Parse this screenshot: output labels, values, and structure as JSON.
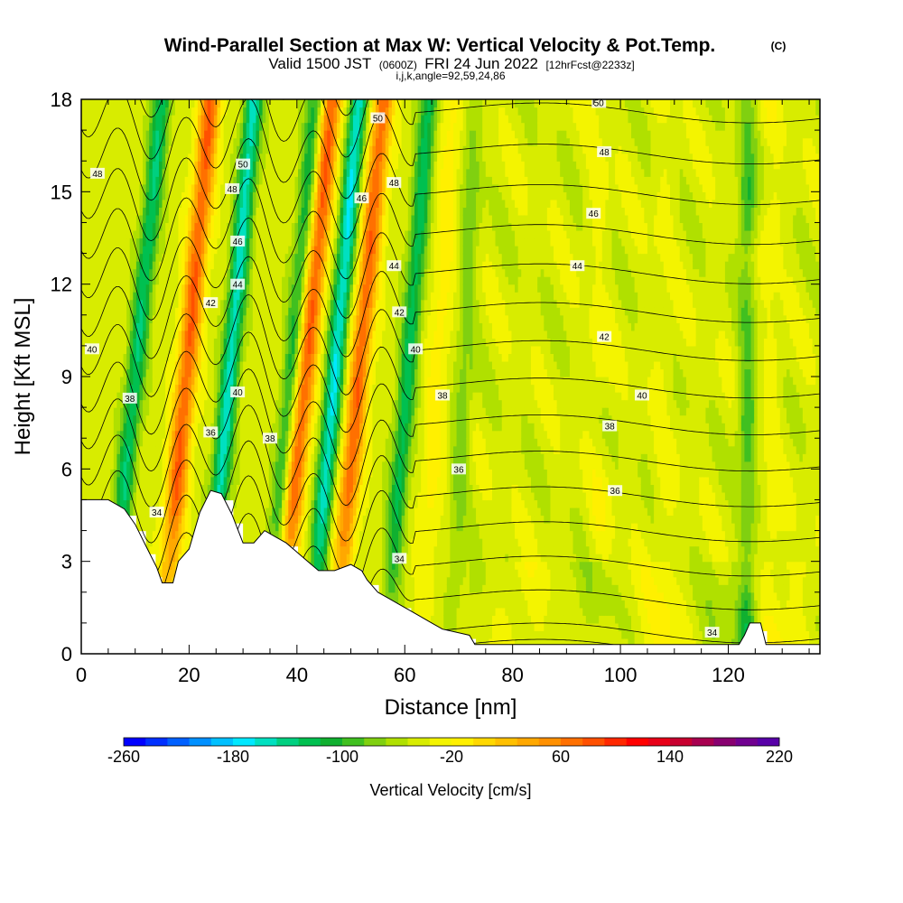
{
  "header": {
    "title_main": "Wind-Parallel Section at Max W: Vertical Velocity & Pot.Temp.",
    "title_tag": "(C)",
    "valid_prefix": "Valid 1500 JST",
    "valid_utc": "(0600Z)",
    "valid_date": "FRI 24 Jun 2022",
    "forecast": "[12hrFcst@2233z]",
    "params": "i,j,k,angle=92,59,24,86"
  },
  "chart_data": {
    "type": "heatmap",
    "xlabel": "Distance [nm]",
    "ylabel": "Height [Kft MSL]",
    "xlim": [
      0,
      137
    ],
    "ylim": [
      0,
      18
    ],
    "x_ticks": [
      "0",
      "20",
      "40",
      "60",
      "80",
      "100",
      "120"
    ],
    "y_ticks": [
      "0",
      "3",
      "6",
      "9",
      "12",
      "15",
      "18"
    ],
    "x_tick_values": [
      0,
      20,
      40,
      60,
      80,
      100,
      120
    ],
    "y_tick_values": [
      0,
      3,
      6,
      9,
      12,
      15,
      18
    ],
    "terrain": [
      [
        0,
        5.0
      ],
      [
        5,
        5.0
      ],
      [
        8,
        4.7
      ],
      [
        10,
        4.2
      ],
      [
        12,
        3.5
      ],
      [
        14,
        2.8
      ],
      [
        15,
        2.3
      ],
      [
        17,
        2.3
      ],
      [
        18,
        3.0
      ],
      [
        20,
        3.4
      ],
      [
        22,
        4.6
      ],
      [
        24,
        5.3
      ],
      [
        26,
        5.2
      ],
      [
        28,
        4.5
      ],
      [
        30,
        3.6
      ],
      [
        32,
        3.6
      ],
      [
        34,
        4.0
      ],
      [
        36,
        3.8
      ],
      [
        38,
        3.6
      ],
      [
        40,
        3.3
      ],
      [
        42,
        3.0
      ],
      [
        44,
        2.7
      ],
      [
        47,
        2.7
      ],
      [
        50,
        2.9
      ],
      [
        52,
        2.7
      ],
      [
        53,
        2.4
      ],
      [
        55,
        2.0
      ],
      [
        57,
        1.8
      ],
      [
        59,
        1.6
      ],
      [
        61,
        1.4
      ],
      [
        63,
        1.2
      ],
      [
        65,
        1.0
      ],
      [
        67,
        0.8
      ],
      [
        72,
        0.6
      ],
      [
        73,
        0.3
      ],
      [
        122,
        0.3
      ],
      [
        123,
        0.6
      ],
      [
        124,
        1.0
      ],
      [
        126,
        1.0
      ],
      [
        127,
        0.3
      ],
      [
        137,
        0.3
      ]
    ],
    "updrafts": [
      {
        "center": 19.5,
        "tilt": 4.5,
        "value": 150
      },
      {
        "center": 41.5,
        "tilt": 5.0,
        "value": 155
      },
      {
        "center": 51.5,
        "tilt": 4.5,
        "value": 145
      },
      {
        "center": 66.0,
        "tilt": 3.0,
        "value": 40
      },
      {
        "center": 96.0,
        "tilt": 0.0,
        "value": 25
      },
      {
        "center": 108.0,
        "tilt": 0.0,
        "value": 20
      },
      {
        "center": 128.0,
        "tilt": 0.0,
        "value": 30
      }
    ],
    "downdrafts": [
      {
        "center": 10.0,
        "tilt": 5.0,
        "value": -110
      },
      {
        "center": 27.5,
        "tilt": 4.5,
        "value": -140
      },
      {
        "center": 39.0,
        "tilt": 4.5,
        "value": -90
      },
      {
        "center": 47.0,
        "tilt": 4.5,
        "value": -150
      },
      {
        "center": 60.5,
        "tilt": 4.0,
        "value": -100
      },
      {
        "center": 71.0,
        "tilt": 2.0,
        "value": -40
      },
      {
        "center": 123.5,
        "tilt": 0.0,
        "value": -80
      }
    ],
    "contour_levels": [
      34,
      36,
      38,
      40,
      42,
      44,
      46,
      48,
      50
    ],
    "contour_labels": [
      {
        "text": "50",
        "x": 55,
        "y": 17.4
      },
      {
        "text": "50",
        "x": 30,
        "y": 15.9
      },
      {
        "text": "50",
        "x": 96,
        "y": 17.9
      },
      {
        "text": "48",
        "x": 3,
        "y": 15.6
      },
      {
        "text": "48",
        "x": 28,
        "y": 15.1
      },
      {
        "text": "48",
        "x": 58,
        "y": 15.3
      },
      {
        "text": "48",
        "x": 97,
        "y": 16.3
      },
      {
        "text": "46",
        "x": 52,
        "y": 14.8
      },
      {
        "text": "46",
        "x": 29,
        "y": 13.4
      },
      {
        "text": "46",
        "x": 95,
        "y": 14.3
      },
      {
        "text": "44",
        "x": 29,
        "y": 12.0
      },
      {
        "text": "44",
        "x": 58,
        "y": 12.6
      },
      {
        "text": "44",
        "x": 92,
        "y": 12.6
      },
      {
        "text": "42",
        "x": 24,
        "y": 11.4
      },
      {
        "text": "42",
        "x": 59,
        "y": 11.1
      },
      {
        "text": "42",
        "x": 97,
        "y": 10.3
      },
      {
        "text": "40",
        "x": 2,
        "y": 9.9
      },
      {
        "text": "40",
        "x": 29,
        "y": 8.5
      },
      {
        "text": "40",
        "x": 62,
        "y": 9.9
      },
      {
        "text": "40",
        "x": 104,
        "y": 8.4
      },
      {
        "text": "38",
        "x": 9,
        "y": 8.3
      },
      {
        "text": "38",
        "x": 35,
        "y": 7.0
      },
      {
        "text": "38",
        "x": 67,
        "y": 8.4
      },
      {
        "text": "38",
        "x": 98,
        "y": 7.4
      },
      {
        "text": "36",
        "x": 24,
        "y": 7.2
      },
      {
        "text": "36",
        "x": 70,
        "y": 6.0
      },
      {
        "text": "36",
        "x": 99,
        "y": 5.3
      },
      {
        "text": "34",
        "x": 14,
        "y": 4.6
      },
      {
        "text": "34",
        "x": 59,
        "y": 3.1
      },
      {
        "text": "34",
        "x": 117,
        "y": 0.7
      }
    ]
  },
  "colorbar": {
    "label": "Vertical Velocity [cm/s]",
    "tick_labels": [
      "-260",
      "-180",
      "-100",
      "-20",
      "60",
      "140",
      "220"
    ],
    "min": -260,
    "max": 220,
    "step": 20,
    "colors": [
      "#0000ff",
      "#0030ff",
      "#0060ff",
      "#0090ff",
      "#00c0ff",
      "#00e8ff",
      "#00e0c0",
      "#00d080",
      "#00c050",
      "#10b030",
      "#40c020",
      "#80d010",
      "#b0e000",
      "#d8ec00",
      "#f4f400",
      "#fff000",
      "#ffd800",
      "#ffc000",
      "#ffa800",
      "#ff9000",
      "#ff7000",
      "#ff5000",
      "#ff2800",
      "#ff0000",
      "#e80018",
      "#c80030",
      "#a80050",
      "#880070",
      "#700090",
      "#5800a8"
    ]
  }
}
